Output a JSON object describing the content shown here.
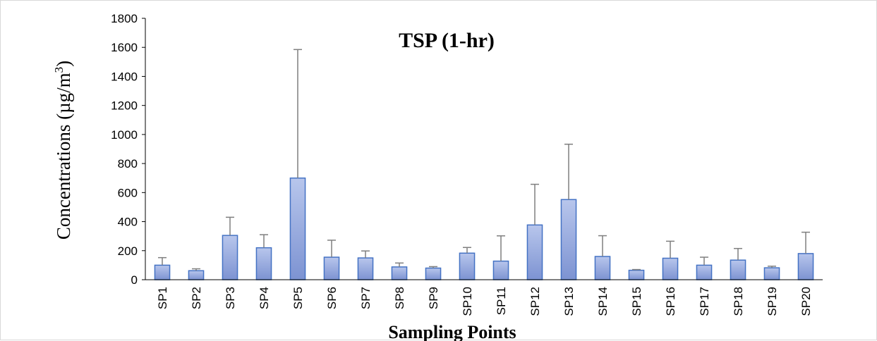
{
  "chart_data": {
    "type": "bar",
    "title": "TSP (1-hr)",
    "xlabel": "Sampling Points",
    "ylabel": "Concentrations (µg/m",
    "ylabel_sup": "3",
    "ylabel_close": ")",
    "ylim": [
      0,
      1800
    ],
    "yticks": [
      "0",
      "200",
      "400",
      "600",
      "800",
      "1000",
      "1200",
      "1400",
      "1600",
      "1800"
    ],
    "grid": false,
    "categories": [
      "SP1",
      "SP2",
      "SP3",
      "SP4",
      "SP5",
      "SP6",
      "SP7",
      "SP8",
      "SP9",
      "SP10",
      "SP11",
      "SP12",
      "SP13",
      "SP14",
      "SP15",
      "SP16",
      "SP17",
      "SP18",
      "SP19",
      "SP20"
    ],
    "values": [
      100,
      62,
      305,
      220,
      700,
      155,
      150,
      88,
      80,
      183,
      128,
      377,
      552,
      160,
      65,
      148,
      100,
      135,
      82,
      180
    ],
    "error_upper": [
      152,
      75,
      430,
      310,
      1585,
      272,
      198,
      115,
      90,
      222,
      302,
      657,
      933,
      303,
      70,
      265,
      155,
      215,
      93,
      327
    ],
    "colors": {
      "bar_top": "#b8c6ec",
      "bar_bottom": "#7d93d2",
      "bar_border": "#4472c4",
      "error_bar": "#7f7f7f",
      "axis": "#000000"
    }
  }
}
